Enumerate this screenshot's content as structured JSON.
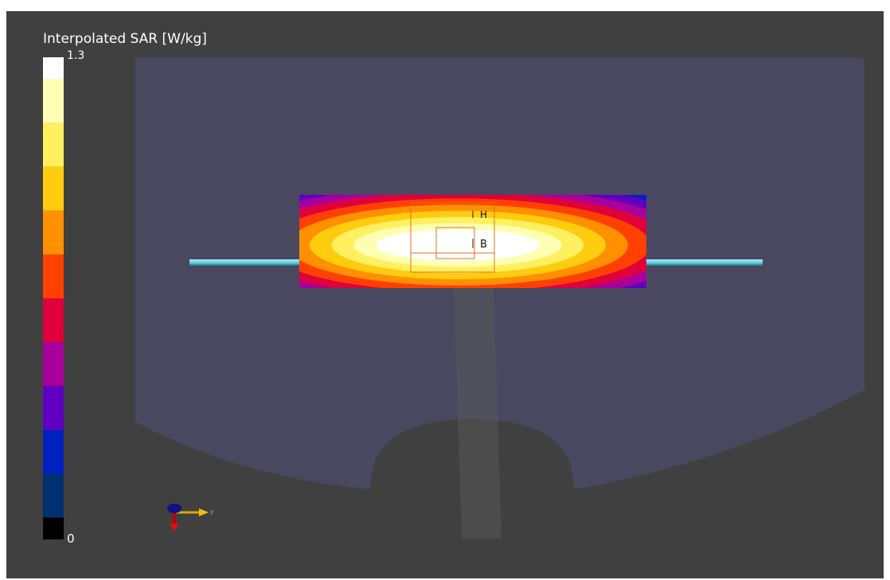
{
  "colorbar": {
    "title": "Interpolated SAR [W/kg]",
    "max_label": "1.3",
    "min_label": "0",
    "colors": [
      "#ffffff",
      "#ffffb4",
      "#fff060",
      "#ffcc10",
      "#ff9000",
      "#ff4000",
      "#e0003c",
      "#a8009c",
      "#6000c0",
      "#0020c0",
      "#003070",
      "#000000"
    ]
  },
  "probe_labels": {
    "h": "H",
    "b": "B"
  },
  "axes_triad": {
    "y": "y"
  }
}
